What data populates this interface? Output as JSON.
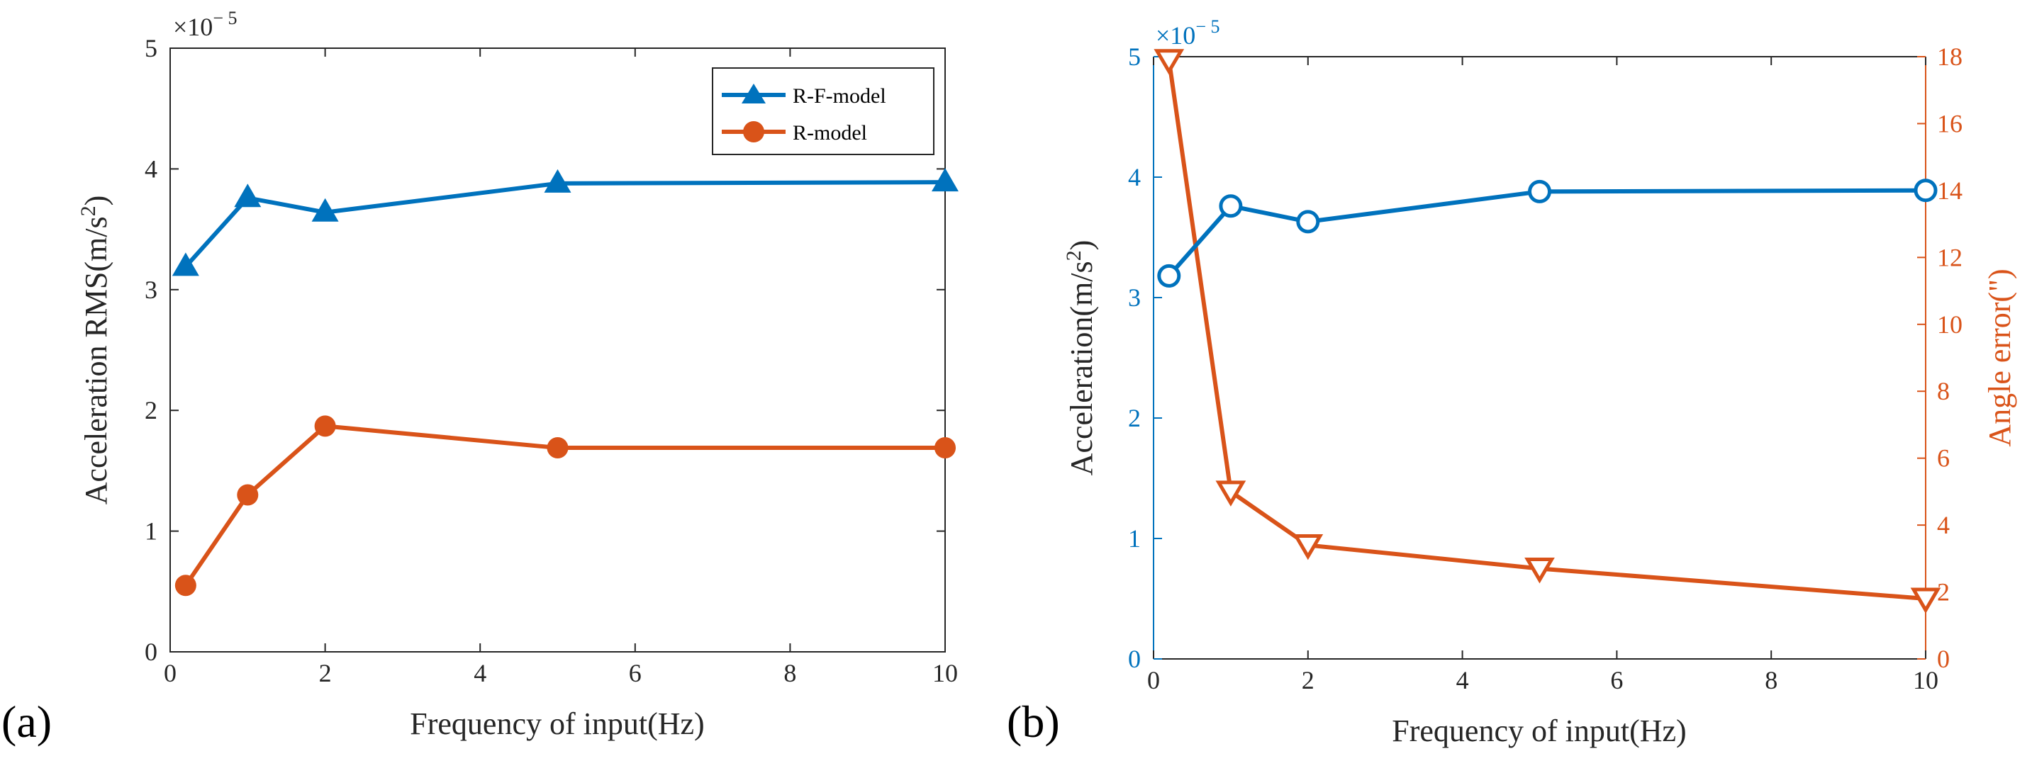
{
  "colors": {
    "blue": "#0072BD",
    "orange": "#D95319",
    "black": "#262626"
  },
  "chart_data": [
    {
      "type": "line",
      "panel_label": "(a)",
      "xlabel": "Frequency of input(Hz)",
      "ylabel_prefix": "Acceleration RMS(m/s",
      "ylabel_suffix": ")",
      "ylabel_exp": "2",
      "exponent_base": "×10",
      "exponent_power": "− 5",
      "xlim": [
        0,
        10
      ],
      "ylim": [
        0,
        5
      ],
      "xticks": [
        "0",
        "2",
        "4",
        "6",
        "8",
        "10"
      ],
      "yticks": [
        "0",
        "1",
        "2",
        "3",
        "4",
        "5"
      ],
      "legend_position": "top-right",
      "series": [
        {
          "name": "R-F-model",
          "marker": "triangle-filled",
          "color": "#0072BD",
          "x": [
            0.2,
            1,
            2,
            5,
            10
          ],
          "y": [
            3.19,
            3.76,
            3.64,
            3.88,
            3.89
          ]
        },
        {
          "name": "R-model",
          "marker": "circle-filled",
          "color": "#D95319",
          "x": [
            0.2,
            1,
            2,
            5,
            10
          ],
          "y": [
            0.55,
            1.3,
            1.87,
            1.69,
            1.69
          ]
        }
      ]
    },
    {
      "type": "line",
      "panel_label": "(b)",
      "xlabel": "Frequency of input(Hz)",
      "ylabel_prefix": "Acceleration(m/s",
      "ylabel_suffix": ")",
      "ylabel_exp": "2",
      "y2label": "Angle error(\")",
      "exponent_base": "×10",
      "exponent_power": "− 5",
      "xlim": [
        0,
        10
      ],
      "ylim": [
        0,
        5
      ],
      "y2lim": [
        0,
        18
      ],
      "xticks": [
        "0",
        "2",
        "4",
        "6",
        "8",
        "10"
      ],
      "yticks": [
        "0",
        "1",
        "2",
        "3",
        "4",
        "5"
      ],
      "y2ticks": [
        "0",
        "2",
        "4",
        "6",
        "8",
        "10",
        "12",
        "14",
        "16",
        "18"
      ],
      "series": [
        {
          "name": "Acceleration",
          "axis": "left",
          "marker": "circle-open",
          "color": "#0072BD",
          "x": [
            0.2,
            1,
            2,
            5,
            10
          ],
          "y": [
            3.18,
            3.76,
            3.63,
            3.88,
            3.89
          ]
        },
        {
          "name": "Angle error",
          "axis": "right",
          "marker": "triangle-down-open",
          "color": "#D95319",
          "x": [
            0.2,
            1,
            2,
            5,
            10
          ],
          "y": [
            17.9,
            5.0,
            3.4,
            2.7,
            1.8
          ]
        }
      ]
    }
  ]
}
